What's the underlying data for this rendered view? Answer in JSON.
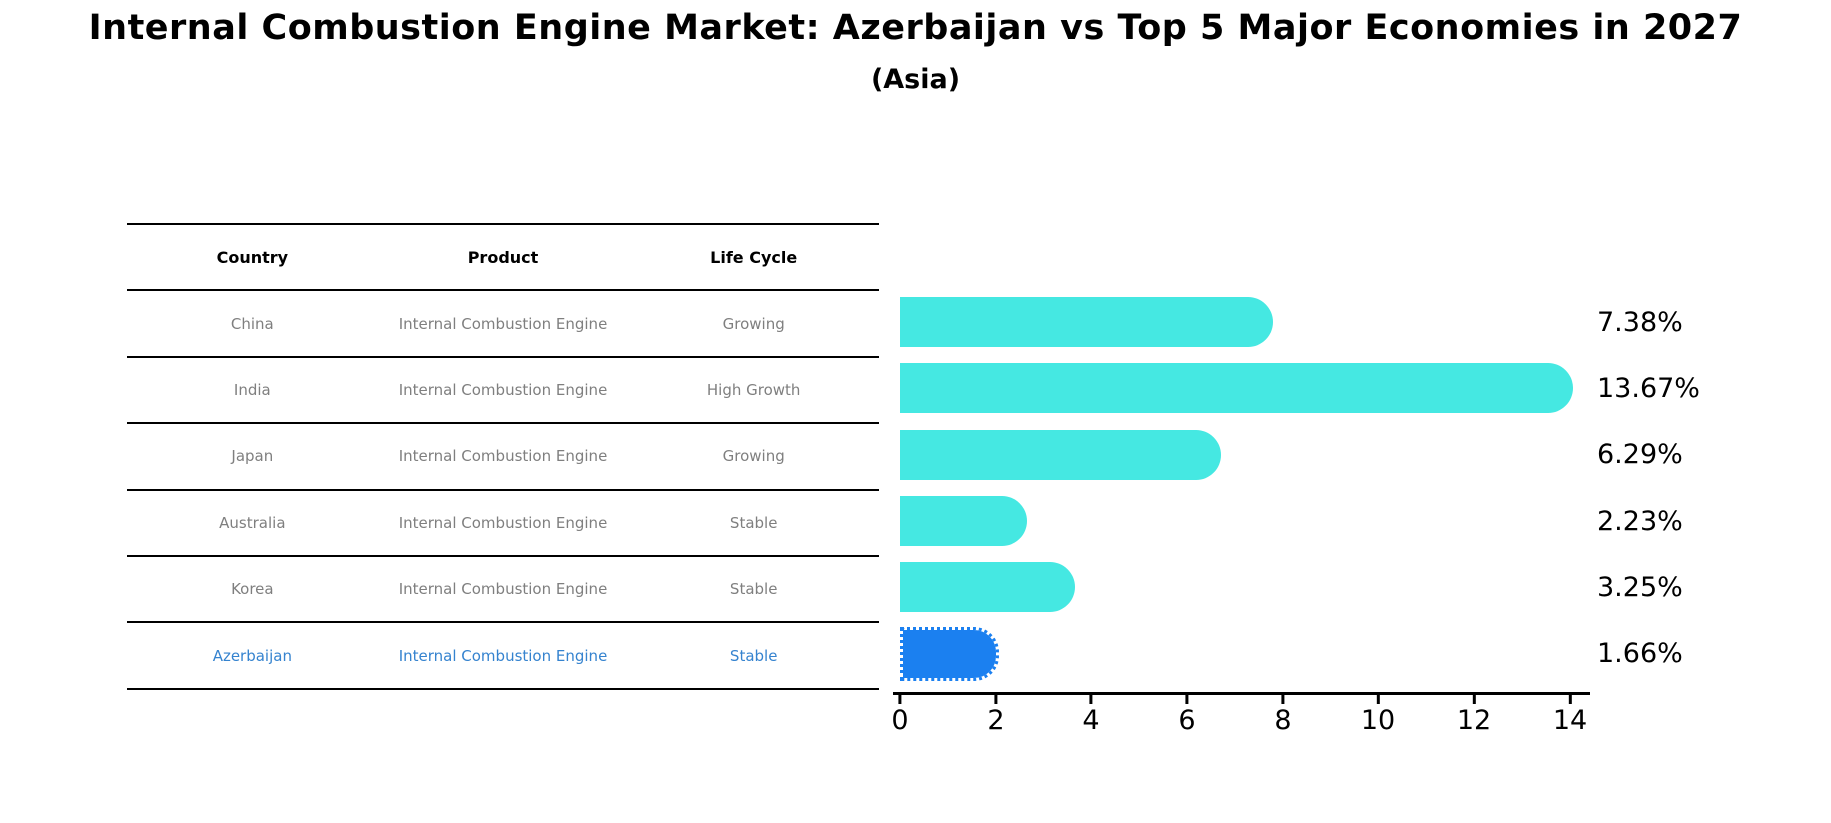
{
  "title": "Internal Combustion Engine Market: Azerbaijan vs Top 5 Major Economies in 2027",
  "subtitle": "(Asia)",
  "table": {
    "headers": [
      "Country",
      "Product",
      "Life Cycle"
    ],
    "rows": [
      {
        "country": "China",
        "product": "Internal Combustion Engine",
        "life_cycle": "Growing"
      },
      {
        "country": "India",
        "product": "Internal Combustion Engine",
        "life_cycle": "High Growth"
      },
      {
        "country": "Japan",
        "product": "Internal Combustion Engine",
        "life_cycle": "Growing"
      },
      {
        "country": "Australia",
        "product": "Internal Combustion Engine",
        "life_cycle": "Stable"
      },
      {
        "country": "Korea",
        "product": "Internal Combustion Engine",
        "life_cycle": "Stable"
      },
      {
        "country": "Azerbaijan",
        "product": "Internal Combustion Engine",
        "life_cycle": "Stable"
      }
    ]
  },
  "chart_data": {
    "type": "bar",
    "orientation": "horizontal",
    "title": "Internal Combustion Engine Market: Azerbaijan vs Top 5 Major Economies in 2027 (Asia)",
    "categories": [
      "China",
      "India",
      "Japan",
      "Australia",
      "Korea",
      "Azerbaijan"
    ],
    "values": [
      7.38,
      13.67,
      6.29,
      2.23,
      3.25,
      1.66
    ],
    "value_labels": [
      "7.38%",
      "13.67%",
      "6.29%",
      "2.23%",
      "3.25%",
      "1.66%"
    ],
    "x_ticks": [
      "0",
      "2",
      "4",
      "6",
      "8",
      "10",
      "12",
      "14"
    ],
    "xlim": [
      0,
      14
    ],
    "grid": false,
    "legend": false,
    "bar_color": "#45E8E2",
    "highlight_color": "#1B80F0",
    "highlight_index": 5,
    "highlight_text_color": "#3583CF",
    "table_text_color": "#7F7F7F"
  }
}
